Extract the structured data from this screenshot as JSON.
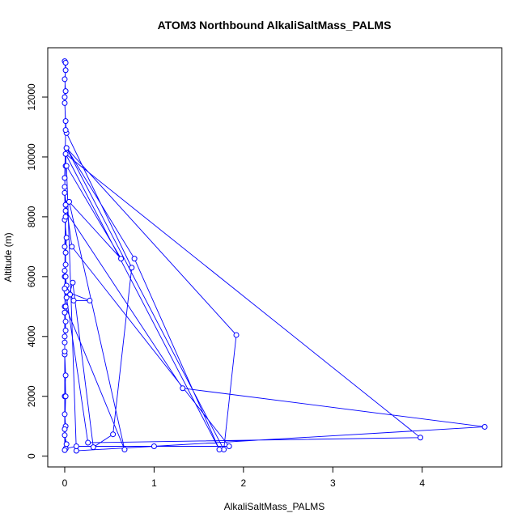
{
  "chart_data": {
    "type": "line",
    "title": "ATOM3 Northbound AlkaliSaltMass_PALMS",
    "xlabel": "AlkaliSaltMass_PALMS",
    "ylabel": "Altitude (m)",
    "xlim": [
      -0.19,
      4.89
    ],
    "ylim": [
      -360,
      13650
    ],
    "x_ticks": [
      0,
      1,
      2,
      3,
      4
    ],
    "y_ticks": [
      0,
      2000,
      4000,
      6000,
      8000,
      10000,
      12000
    ],
    "grid": false,
    "legend": "none",
    "colors": {
      "series": "#0000ff",
      "axes": "#000000"
    },
    "series": [
      {
        "marker": "open-circle",
        "points": [
          [
            0.01,
            250
          ],
          [
            0.02,
            400
          ],
          [
            0.0,
            700
          ],
          [
            0.01,
            1000
          ],
          [
            0.0,
            1400
          ],
          [
            0.0,
            2000
          ],
          [
            0.01,
            2700
          ],
          [
            0.0,
            3400
          ],
          [
            0.0,
            4000
          ],
          [
            0.01,
            4500
          ],
          [
            0.0,
            5000
          ],
          [
            0.02,
            5500
          ],
          [
            0.28,
            5200
          ],
          [
            0.1,
            5200
          ],
          [
            0.06,
            5400
          ],
          [
            0.02,
            5700
          ],
          [
            0.0,
            6200
          ],
          [
            0.01,
            6800
          ],
          [
            0.02,
            7300
          ],
          [
            0.0,
            7900
          ],
          [
            0.01,
            8400
          ],
          [
            0.0,
            9000
          ],
          [
            0.01,
            9700
          ],
          [
            0.02,
            10300
          ],
          [
            1.92,
            4050
          ],
          [
            1.78,
            220
          ],
          [
            0.02,
            10300
          ],
          [
            0.78,
            6600
          ],
          [
            1.73,
            220
          ],
          [
            0.01,
            10100
          ],
          [
            3.98,
            620
          ],
          [
            0.26,
            450
          ],
          [
            0.02,
            5300
          ],
          [
            0.0,
            6000
          ],
          [
            0.01,
            8200
          ],
          [
            1.32,
            2270
          ],
          [
            4.7,
            980
          ],
          [
            1.0,
            330
          ],
          [
            0.13,
            180
          ],
          [
            0.02,
            9700
          ],
          [
            0.63,
            6600
          ],
          [
            0.05,
            8500
          ],
          [
            0.67,
            220
          ],
          [
            0.01,
            5000
          ],
          [
            0.09,
            5800
          ],
          [
            0.32,
            300
          ],
          [
            0.54,
            730
          ],
          [
            0.75,
            6300
          ],
          [
            0.02,
            10800
          ],
          [
            0.01,
            11200
          ],
          [
            0.0,
            11800
          ],
          [
            0.01,
            12200
          ],
          [
            0.0,
            12600
          ],
          [
            0.01,
            12900
          ],
          [
            0.0,
            13200
          ],
          [
            0.01,
            13150
          ],
          [
            0.0,
            12000
          ],
          [
            0.01,
            10900
          ],
          [
            0.0,
            9300
          ],
          [
            0.01,
            8000
          ],
          [
            0.0,
            7000
          ],
          [
            0.01,
            6000
          ],
          [
            0.0,
            4800
          ],
          [
            0.0,
            3500
          ],
          [
            0.01,
            2000
          ],
          [
            0.0,
            900
          ],
          [
            0.01,
            250
          ],
          [
            0.13,
            330
          ],
          [
            1.84,
            330
          ],
          [
            0.08,
            7000
          ],
          [
            0.0,
            8800
          ],
          [
            0.01,
            6400
          ],
          [
            0.0,
            5600
          ],
          [
            0.01,
            4200
          ],
          [
            0.0,
            3800
          ],
          [
            0.0,
            200
          ]
        ]
      }
    ]
  }
}
